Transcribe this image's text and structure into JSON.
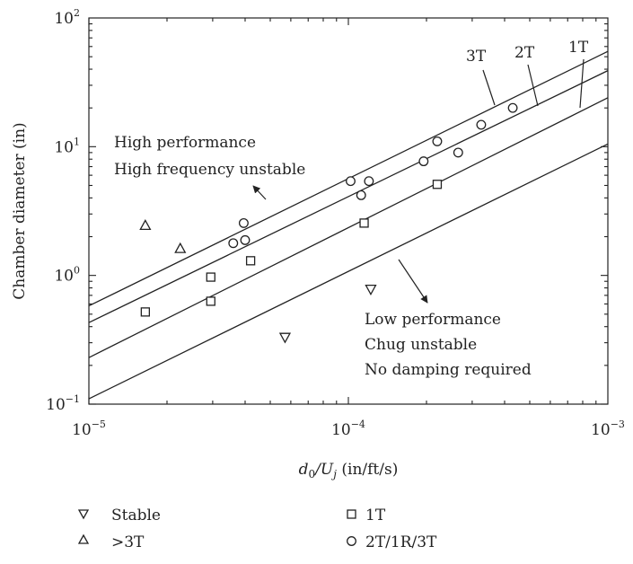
{
  "chart_data": {
    "type": "scatter",
    "title": "",
    "xlabel_base": "d",
    "xlabel_sub1": "0",
    "xlabel_mid": "/U",
    "xlabel_sub2": "j",
    "xlabel_tail": " (in/ft/s)",
    "ylabel": "Chamber diameter (in)",
    "x_scale": "log",
    "y_scale": "log",
    "xlim": [
      1e-05,
      0.001
    ],
    "ylim": [
      0.1,
      100
    ],
    "x_ticks": [
      {
        "value": 1e-05,
        "base": "10",
        "exp": "−5"
      },
      {
        "value": 0.0001,
        "base": "10",
        "exp": "−4"
      },
      {
        "value": 0.001,
        "base": "10",
        "exp": "−3"
      }
    ],
    "y_ticks": [
      {
        "value": 0.1,
        "base": "10",
        "exp": "−1"
      },
      {
        "value": 1,
        "base": "10",
        "exp": "0"
      },
      {
        "value": 10,
        "base": "10",
        "exp": "1"
      },
      {
        "value": 100,
        "base": "10",
        "exp": "2"
      }
    ],
    "grid": false,
    "legend_position": "bottom",
    "series": [
      {
        "name": "Stable",
        "marker": "triangle-down",
        "points": [
          [
            5.7e-05,
            0.33
          ],
          [
            0.000122,
            0.78
          ]
        ]
      },
      {
        "name": ">3T",
        "marker": "triangle-up",
        "points": [
          [
            1.65e-05,
            2.45
          ],
          [
            2.25e-05,
            1.62
          ]
        ]
      },
      {
        "name": "1T",
        "marker": "square",
        "points": [
          [
            1.65e-05,
            0.52
          ],
          [
            2.95e-05,
            0.63
          ],
          [
            2.95e-05,
            0.97
          ],
          [
            4.2e-05,
            1.3
          ],
          [
            0.000115,
            2.55
          ],
          [
            0.00022,
            5.1
          ]
        ]
      },
      {
        "name": "2T/1R/3T",
        "marker": "circle",
        "points": [
          [
            3.6e-05,
            1.78
          ],
          [
            4e-05,
            1.88
          ],
          [
            3.95e-05,
            2.55
          ],
          [
            0.000102,
            5.4
          ],
          [
            0.000112,
            4.2
          ],
          [
            0.00012,
            5.4
          ],
          [
            0.000195,
            7.7
          ],
          [
            0.00022,
            11.0
          ],
          [
            0.000265,
            9.0
          ],
          [
            0.000325,
            14.8
          ],
          [
            0.00043,
            20.0
          ]
        ]
      }
    ],
    "boundary_lines": [
      {
        "label": "3T",
        "from": [
          1e-05,
          0.58
        ],
        "to": [
          0.001,
          55
        ]
      },
      {
        "label": "2T",
        "from": [
          1e-05,
          0.43
        ],
        "to": [
          0.001,
          39
        ]
      },
      {
        "label": "1T",
        "from": [
          1e-05,
          0.23
        ],
        "to": [
          0.001,
          24
        ]
      },
      {
        "label": "",
        "from": [
          1e-05,
          0.11
        ],
        "to": [
          0.001,
          10.5
        ]
      }
    ],
    "annotations": {
      "upper_line1": "High performance",
      "upper_line2": "High frequency unstable",
      "lower_line1": "Low performance",
      "lower_line2": "Chug unstable",
      "lower_line3": "No damping required"
    },
    "colors": {
      "ink": "#222222"
    }
  }
}
